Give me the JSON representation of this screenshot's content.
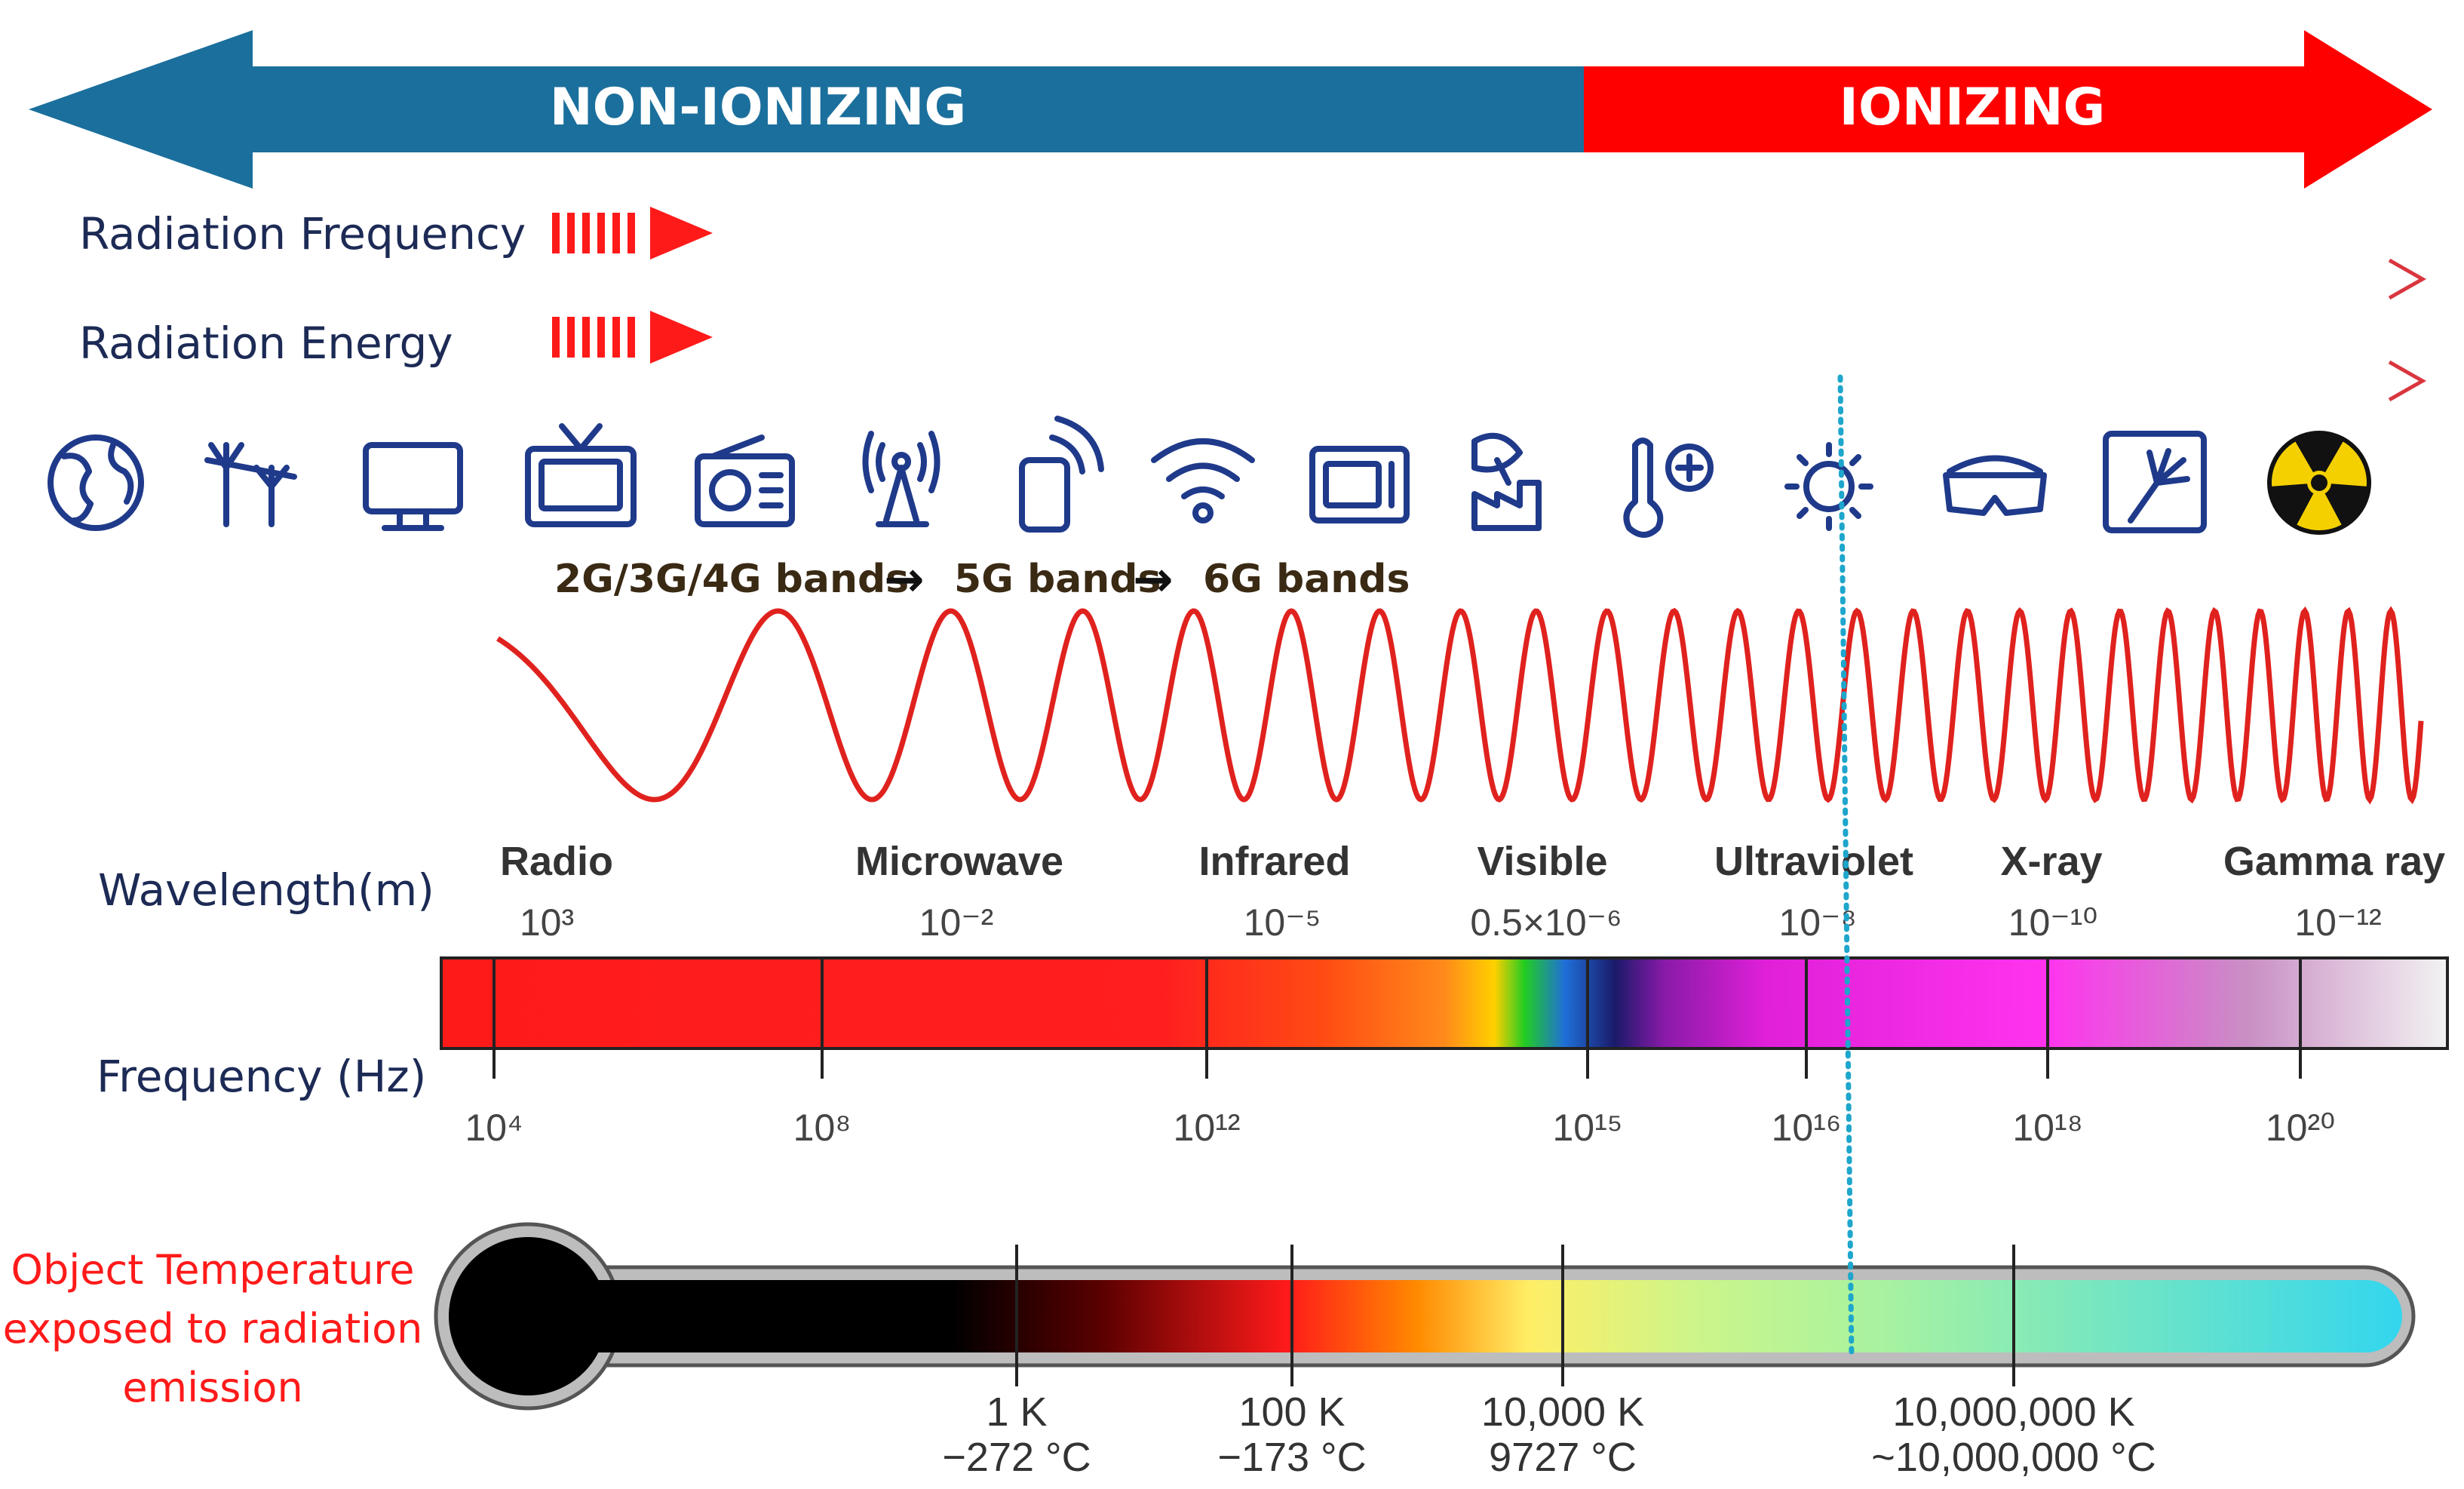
{
  "top_arrow": {
    "left_label": "NON-IONIZING",
    "right_label": "IONIZING",
    "left_color": "#1b6f9c",
    "right_color": "#ff0000"
  },
  "rows": {
    "frequency_label": "Radiation Frequency",
    "energy_label": "Radiation Energy"
  },
  "icons": [
    "globe-icon",
    "power-line-antenna-icon",
    "monitor-icon",
    "television-icon",
    "radio-icon",
    "broadcast-tower-icon",
    "smartphone-signal-icon",
    "wifi-icon",
    "microwave-oven-icon",
    "satellite-dish-factory-icon",
    "thermometer-icon",
    "sun-icon",
    "safety-goggles-icon",
    "xray-hand-icon",
    "radiation-hazard-icon"
  ],
  "bands": {
    "band1": "2G/3G/4G bands",
    "band2": "5G bands",
    "band3": "6G bands",
    "arrow_glyph": "→"
  },
  "spectrum": {
    "wavelength_label": "Wavelength(m)",
    "frequency_label": "Frequency (Hz)",
    "regions": [
      {
        "name": "Radio",
        "wavelength": "10³"
      },
      {
        "name": "Microwave",
        "wavelength": "10⁻²"
      },
      {
        "name": "Infrared",
        "wavelength": "10⁻⁵"
      },
      {
        "name": "Visible",
        "wavelength": "0.5×10⁻⁶"
      },
      {
        "name": "Ultraviolet",
        "wavelength": "10⁻⁸"
      },
      {
        "name": "X-ray",
        "wavelength": "10⁻¹⁰"
      },
      {
        "name": "Gamma ray",
        "wavelength": "10⁻¹²"
      }
    ],
    "frequencies": [
      "10⁴",
      "10⁸",
      "10¹²",
      "10¹⁵",
      "10¹⁶",
      "10¹⁸",
      "10²⁰"
    ]
  },
  "temperature": {
    "label_lines": [
      "Object Temperature",
      "exposed to radiation",
      "emission"
    ],
    "ticks": [
      {
        "kelvin": "1 K",
        "celsius": "−272 °C"
      },
      {
        "kelvin": "100 K",
        "celsius": "−173 °C"
      },
      {
        "kelvin": "10,000 K",
        "celsius": "9727 °C"
      },
      {
        "kelvin": "10,000,000 K",
        "celsius": "~10,000,000 °C"
      }
    ]
  }
}
